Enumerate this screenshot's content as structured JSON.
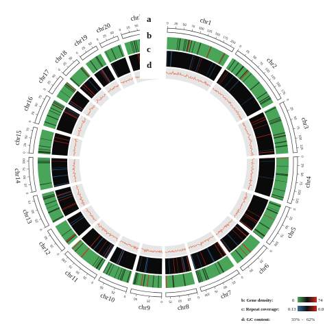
{
  "track_letters": {
    "a": "a",
    "b": "b",
    "c": "c",
    "d": "d"
  },
  "chromosomes": [
    {
      "name": "chr1",
      "ticks": [
        "0",
        "25",
        "50",
        "75",
        "100",
        "125",
        "150",
        "175",
        "200"
      ]
    },
    {
      "name": "chr2",
      "ticks": [
        "0",
        "25",
        "50",
        "75",
        "100",
        "125",
        "150",
        "175"
      ]
    },
    {
      "name": "chr3",
      "ticks": [
        "0",
        "25",
        "50",
        "75",
        "100",
        "125"
      ]
    },
    {
      "name": "chr4",
      "ticks": [
        "0",
        "25",
        "50",
        "75",
        "100",
        "125"
      ]
    },
    {
      "name": "chr5",
      "ticks": [
        "0",
        "25",
        "50",
        "75",
        "100"
      ]
    },
    {
      "name": "chr6",
      "ticks": [
        "0",
        "25",
        "50"
      ]
    },
    {
      "name": "chr7",
      "ticks": [
        "0",
        "25",
        "50",
        "75",
        "100"
      ]
    },
    {
      "name": "chr8",
      "ticks": [
        "0",
        "25",
        "50",
        "75"
      ]
    },
    {
      "name": "chr9",
      "ticks": [
        "0",
        "25",
        "50"
      ]
    },
    {
      "name": "chr10",
      "ticks": [
        "0",
        "25",
        "50"
      ]
    },
    {
      "name": "chr11",
      "ticks": [
        "0",
        "25",
        "50",
        "75",
        "100"
      ]
    },
    {
      "name": "chr12",
      "ticks": [
        "0",
        "25",
        "50"
      ]
    },
    {
      "name": "chr13",
      "ticks": [
        "0",
        "25",
        "50",
        "75"
      ]
    },
    {
      "name": "chr14",
      "ticks": [
        "0",
        "25",
        "50",
        "75",
        "100"
      ]
    },
    {
      "name": "chr15",
      "ticks": [
        "0",
        "25",
        "50",
        "75"
      ]
    },
    {
      "name": "chr16",
      "ticks": [
        "0",
        "25",
        "50",
        "75"
      ]
    },
    {
      "name": "chr17",
      "ticks": [
        "0",
        "25",
        "50"
      ]
    },
    {
      "name": "chr18",
      "ticks": [
        "0",
        "25",
        "50"
      ]
    },
    {
      "name": "chr19",
      "ticks": [
        "0",
        "25",
        "50"
      ]
    },
    {
      "name": "chr20",
      "ticks": [
        "0",
        "25",
        "50"
      ]
    },
    {
      "name": "chrX",
      "ticks": [
        "0",
        "25",
        "50",
        "75",
        "100"
      ]
    }
  ],
  "legend": {
    "gene_density": {
      "label": "b: Gene density:",
      "min": "0",
      "max": "74"
    },
    "repeat_coverage": {
      "label": "c: Repeat coverage:",
      "min": "0.13",
      "max": "0.8"
    },
    "gc_content": {
      "label": "d: GC content:",
      "min": "33%",
      "max": "62%"
    }
  },
  "colors": {
    "gene_low": "#4aa55a",
    "gene_high": "#cc2b1f",
    "repeat_low": "#2d6fa8",
    "repeat_high": "#c4261b",
    "repeat_base": "#0a0a0a",
    "gc_background": "#e6e6e6",
    "gc_line": "#e8704a"
  }
}
